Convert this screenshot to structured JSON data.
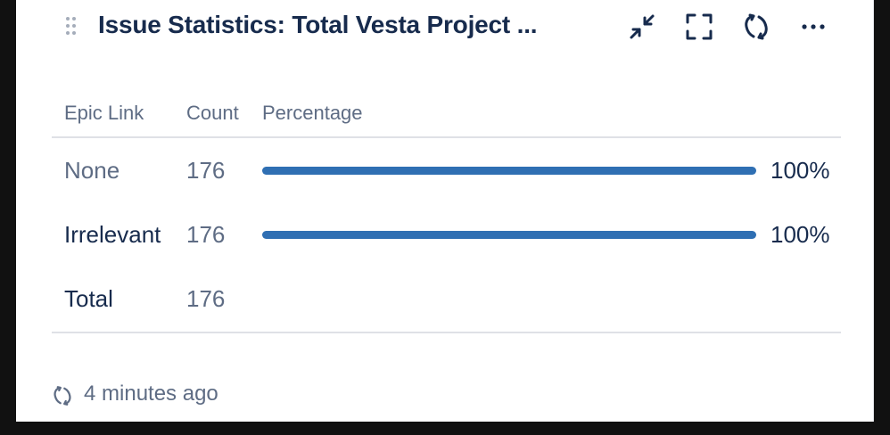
{
  "gadget": {
    "title": "Issue Statistics: Total Vesta Project ...",
    "header_icons": [
      "drag-handle-icon",
      "minimize-icon",
      "fullscreen-icon",
      "refresh-icon",
      "more-icon"
    ]
  },
  "table": {
    "columns": [
      "Epic Link",
      "Count",
      "Percentage"
    ],
    "rows": [
      {
        "label": "None",
        "count": "176",
        "percentage": "100%",
        "fraction": 1.0
      },
      {
        "label": "Irrelevant",
        "count": "176",
        "percentage": "100%",
        "fraction": 1.0
      }
    ],
    "total": {
      "label": "Total",
      "count": "176"
    }
  },
  "footer": {
    "icon": "refresh-icon",
    "updated": "4 minutes ago"
  },
  "colors": {
    "bar": "#2f6fb3",
    "title": "#172b4d",
    "muted": "#5e6c84",
    "divider": "#dfe1e6"
  }
}
